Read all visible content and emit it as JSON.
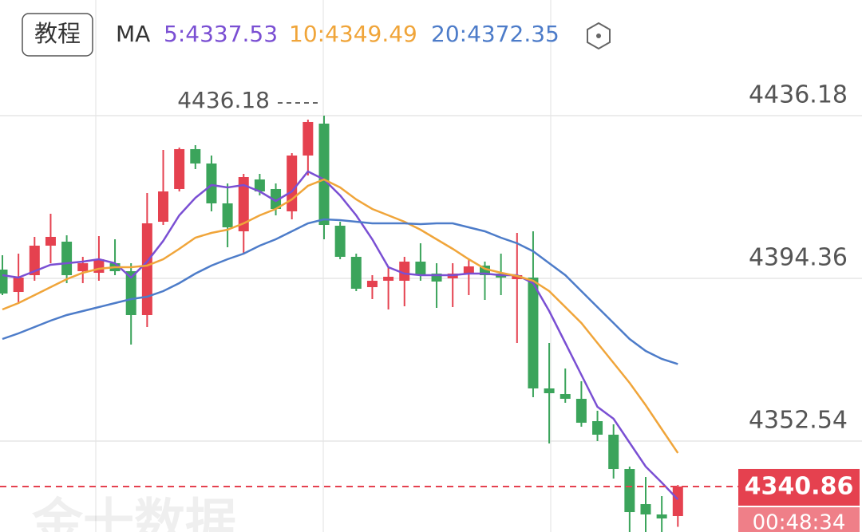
{
  "chart_data": {
    "type": "candlestick",
    "button": "教程",
    "ma_label": "MA",
    "watermark": "金十数据",
    "ylim": [
      4329.17,
      4449.5
    ],
    "yticks": [
      4436.18,
      4394.36,
      4352.54
    ],
    "grid": true,
    "up_color": "#e5414f",
    "down_color": "#3ba45b",
    "high_marker": 4436.18,
    "last_price": 4340.86,
    "countdown": "00:48:34",
    "open": [
      4396.61,
      4390.87,
      4395.18,
      4402.76,
      4403.79,
      4396.2,
      4395.79,
      4398.25,
      4396.2,
      4384.93,
      4408.91,
      4417.32,
      4427.57,
      4423.88,
      4413.63,
      4406.45,
      4419.78,
      4417.32,
      4411.58,
      4425.93,
      4434.13,
      4407.89,
      4399.89,
      4392.1,
      4393.74,
      4393.74,
      4398.66,
      4395.59,
      4394.36,
      4395.59,
      4397.64,
      4395.59,
      4394.15,
      4394.56,
      4366.07,
      4364.63,
      4363.4,
      4357.66,
      4354.18,
      4345.36,
      4336.34,
      4333.68,
      4333.27
    ],
    "high": [
      4400.3,
      4400.71,
      4405.02,
      4410.96,
      4405.43,
      4399.89,
      4405.22,
      4404.4,
      4398.25,
      4416.29,
      4427.36,
      4427.98,
      4428.59,
      4425.93,
      4418.75,
      4421.21,
      4421.21,
      4418.75,
      4426.54,
      4435.15,
      4436.18,
      4408.91,
      4400.71,
      4395.18,
      4397.23,
      4399.89,
      4403.38,
      4398.25,
      4398.25,
      4399.28,
      4398.66,
      4400.71,
      4406.04,
      4406.45,
      4377.75,
      4371.19,
      4367.91,
      4360.33,
      4356.84,
      4345.98,
      4343.31,
      4338.39,
      4341.26
    ],
    "low": [
      4390.05,
      4388.0,
      4393.74,
      4398.25,
      4393.13,
      4393.13,
      4393.74,
      4395.18,
      4377.34,
      4381.85,
      4408.09,
      4416.7,
      4422.44,
      4411.58,
      4402.35,
      4400.71,
      4415.68,
      4410.55,
      4409.53,
      4420.8,
      4404.4,
      4399.28,
      4391.08,
      4389.03,
      4386.36,
      4387.18,
      4393.74,
      4386.77,
      4386.98,
      4390.05,
      4388.82,
      4390.05,
      4377.75,
      4363.81,
      4351.92,
      4362.38,
      4356.23,
      4352.54,
      4342.9,
      4329.17,
      4329.17,
      4329.17,
      4330.5
    ],
    "close": [
      4390.46,
      4394.56,
      4402.76,
      4405.02,
      4395.18,
      4398.25,
      4399.28,
      4396.2,
      4384.93,
      4408.5,
      4416.7,
      4427.57,
      4423.88,
      4413.63,
      4407.48,
      4420.39,
      4416.7,
      4412.19,
      4425.93,
      4434.54,
      4408.09,
      4399.89,
      4391.69,
      4393.74,
      4394.77,
      4398.66,
      4395.18,
      4393.54,
      4395.59,
      4397.43,
      4395.18,
      4394.56,
      4395.18,
      4366.07,
      4364.84,
      4363.4,
      4357.25,
      4354.18,
      4345.36,
      4334.29,
      4333.68,
      4332.65,
      4340.86
    ],
    "series": [
      {
        "name": "5:4337.53",
        "color": "#7a4fd3",
        "values": [
          4395.18,
          4394.57,
          4396.21,
          4397.85,
          4398.26,
          4398.67,
          4399.28,
          4398.26,
          4394.57,
          4398.67,
          4404.0,
          4410.56,
          4415.07,
          4418.35,
          4417.73,
          4418.35,
          4416.71,
          4414.25,
          4416.71,
          4421.83,
          4419.78,
          4415.68,
          4410.56,
          4404.41,
          4397.23,
          4395.59,
          4395.18,
          4395.18,
          4395.18,
          4395.59,
          4395.59,
          4395.18,
          4395.18,
          4393.13,
          4385.96,
          4377.76,
          4369.56,
          4361.36,
          4358.28,
          4352.13,
          4345.98,
          4341.88,
          4337.53
        ]
      },
      {
        "name": "10:4349.49",
        "color": "#f0a53a",
        "values": [
          4386.37,
          4388.01,
          4390.06,
          4392.11,
          4394.16,
          4395.8,
          4396.82,
          4397.23,
          4397.23,
          4397.64,
          4399.28,
          4401.95,
          4404.82,
          4406.05,
          4406.87,
          4408.51,
          4410.56,
          4412.2,
          4414.66,
          4418.14,
          4419.78,
          4417.73,
          4414.66,
          4412.2,
          4410.56,
          4408.92,
          4406.87,
          4404.41,
          4401.95,
          4399.28,
          4396.82,
          4395.8,
          4394.98,
          4393.75,
          4391.08,
          4386.98,
          4382.88,
          4377.76,
          4372.63,
          4367.51,
          4361.77,
          4355.62,
          4349.49
        ]
      },
      {
        "name": "20:4372.35",
        "color": "#4d7cc9",
        "values": [
          4378.78,
          4380.22,
          4381.86,
          4383.5,
          4384.93,
          4385.96,
          4386.98,
          4388.01,
          4389.03,
          4389.65,
          4391.08,
          4393.13,
          4395.59,
          4397.64,
          4399.28,
          4400.72,
          4402.77,
          4404.41,
          4406.46,
          4408.51,
          4409.53,
          4409.33,
          4408.92,
          4408.51,
          4408.51,
          4408.51,
          4408.3,
          4408.51,
          4408.51,
          4407.48,
          4406.46,
          4404.82,
          4403.38,
          4401.33,
          4398.26,
          4395.18,
          4391.08,
          4386.98,
          4382.88,
          4378.78,
          4375.71,
          4373.66,
          4372.35
        ]
      }
    ]
  }
}
